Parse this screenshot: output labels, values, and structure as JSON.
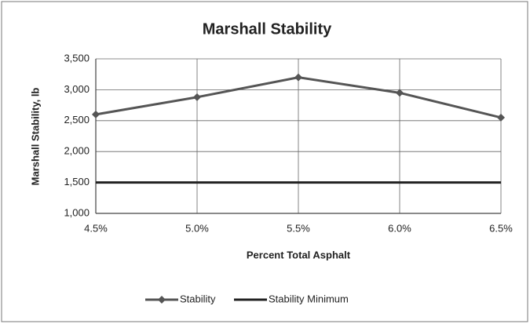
{
  "chart_data": {
    "type": "line",
    "title": "Marshall Stability",
    "xlabel": "Percent Total Asphalt",
    "ylabel": "Marshall Stability, lb",
    "xlim": [
      4.5,
      6.5
    ],
    "xticks": [
      {
        "value": 4.5,
        "label": "4.5%"
      },
      {
        "value": 5,
        "label": "5.0%"
      },
      {
        "value": 5.5,
        "label": "5.5%"
      },
      {
        "value": 6,
        "label": "6.0%"
      },
      {
        "value": 6.5,
        "label": "6.5%"
      }
    ],
    "ylim": [
      1000,
      3500
    ],
    "yticks": [
      {
        "value": 1000,
        "label": "1,000"
      },
      {
        "value": 1500,
        "label": "1,500"
      },
      {
        "value": 2000,
        "label": "2,000"
      },
      {
        "value": 2500,
        "label": "2,500"
      },
      {
        "value": 3000,
        "label": "3,000"
      },
      {
        "value": 3500,
        "label": "3,500"
      }
    ],
    "grid": true,
    "legend": "bottom",
    "series": [
      {
        "name": "Stability",
        "color": "#555555",
        "marker": "diamond",
        "x": [
          4.5,
          5,
          5.5,
          6,
          6.5
        ],
        "values": [
          2600,
          2880,
          3200,
          2950,
          2550
        ]
      },
      {
        "name": "Stability Minimum",
        "color": "#222222",
        "x": [
          4.5,
          6.5
        ],
        "values": [
          1500,
          1500
        ]
      }
    ]
  }
}
